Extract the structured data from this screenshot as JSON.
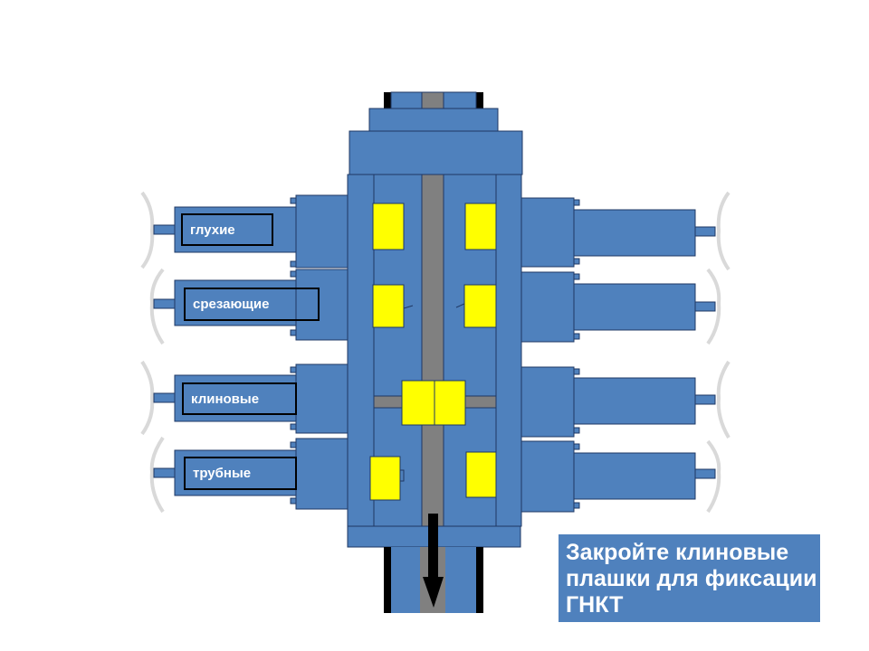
{
  "colors": {
    "body": "#4f81bd",
    "outline": "#1f3864",
    "bore": "#808080",
    "ram": "#ffff00",
    "pipe_dark": "#000000",
    "bracket": "#d9d9d9"
  },
  "ram_labels": [
    {
      "text": "глухие"
    },
    {
      "text": "срезающие"
    },
    {
      "text": "клиновые"
    },
    {
      "text": "трубные"
    }
  ],
  "instruction": {
    "text": "Закройте клиновые плашки для фиксации ГНКТ"
  }
}
